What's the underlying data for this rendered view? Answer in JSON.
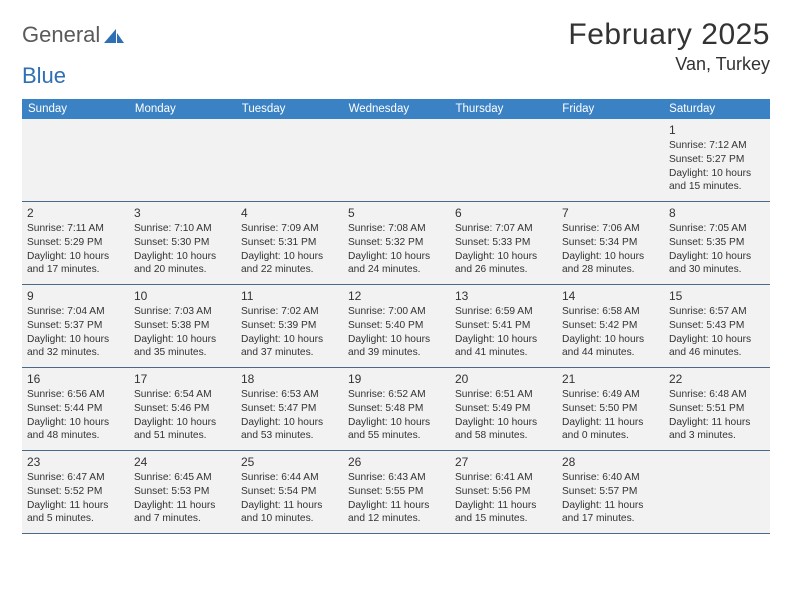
{
  "logo": {
    "word1": "General",
    "word2": "Blue"
  },
  "title": "February 2025",
  "location": "Van, Turkey",
  "colors": {
    "header_bar": "#3b82c4",
    "header_text": "#ffffff",
    "cell_bg": "#f2f2f2",
    "row_divider": "#4a6a8a",
    "logo_gray": "#5a5a5a",
    "logo_blue": "#2f6fb3",
    "sail_blue": "#2f6fb3"
  },
  "dayNames": [
    "Sunday",
    "Monday",
    "Tuesday",
    "Wednesday",
    "Thursday",
    "Friday",
    "Saturday"
  ],
  "weeks": [
    [
      null,
      null,
      null,
      null,
      null,
      null,
      {
        "n": "1",
        "sunrise": "Sunrise: 7:12 AM",
        "sunset": "Sunset: 5:27 PM",
        "daylight": "Daylight: 10 hours and 15 minutes."
      }
    ],
    [
      {
        "n": "2",
        "sunrise": "Sunrise: 7:11 AM",
        "sunset": "Sunset: 5:29 PM",
        "daylight": "Daylight: 10 hours and 17 minutes."
      },
      {
        "n": "3",
        "sunrise": "Sunrise: 7:10 AM",
        "sunset": "Sunset: 5:30 PM",
        "daylight": "Daylight: 10 hours and 20 minutes."
      },
      {
        "n": "4",
        "sunrise": "Sunrise: 7:09 AM",
        "sunset": "Sunset: 5:31 PM",
        "daylight": "Daylight: 10 hours and 22 minutes."
      },
      {
        "n": "5",
        "sunrise": "Sunrise: 7:08 AM",
        "sunset": "Sunset: 5:32 PM",
        "daylight": "Daylight: 10 hours and 24 minutes."
      },
      {
        "n": "6",
        "sunrise": "Sunrise: 7:07 AM",
        "sunset": "Sunset: 5:33 PM",
        "daylight": "Daylight: 10 hours and 26 minutes."
      },
      {
        "n": "7",
        "sunrise": "Sunrise: 7:06 AM",
        "sunset": "Sunset: 5:34 PM",
        "daylight": "Daylight: 10 hours and 28 minutes."
      },
      {
        "n": "8",
        "sunrise": "Sunrise: 7:05 AM",
        "sunset": "Sunset: 5:35 PM",
        "daylight": "Daylight: 10 hours and 30 minutes."
      }
    ],
    [
      {
        "n": "9",
        "sunrise": "Sunrise: 7:04 AM",
        "sunset": "Sunset: 5:37 PM",
        "daylight": "Daylight: 10 hours and 32 minutes."
      },
      {
        "n": "10",
        "sunrise": "Sunrise: 7:03 AM",
        "sunset": "Sunset: 5:38 PM",
        "daylight": "Daylight: 10 hours and 35 minutes."
      },
      {
        "n": "11",
        "sunrise": "Sunrise: 7:02 AM",
        "sunset": "Sunset: 5:39 PM",
        "daylight": "Daylight: 10 hours and 37 minutes."
      },
      {
        "n": "12",
        "sunrise": "Sunrise: 7:00 AM",
        "sunset": "Sunset: 5:40 PM",
        "daylight": "Daylight: 10 hours and 39 minutes."
      },
      {
        "n": "13",
        "sunrise": "Sunrise: 6:59 AM",
        "sunset": "Sunset: 5:41 PM",
        "daylight": "Daylight: 10 hours and 41 minutes."
      },
      {
        "n": "14",
        "sunrise": "Sunrise: 6:58 AM",
        "sunset": "Sunset: 5:42 PM",
        "daylight": "Daylight: 10 hours and 44 minutes."
      },
      {
        "n": "15",
        "sunrise": "Sunrise: 6:57 AM",
        "sunset": "Sunset: 5:43 PM",
        "daylight": "Daylight: 10 hours and 46 minutes."
      }
    ],
    [
      {
        "n": "16",
        "sunrise": "Sunrise: 6:56 AM",
        "sunset": "Sunset: 5:44 PM",
        "daylight": "Daylight: 10 hours and 48 minutes."
      },
      {
        "n": "17",
        "sunrise": "Sunrise: 6:54 AM",
        "sunset": "Sunset: 5:46 PM",
        "daylight": "Daylight: 10 hours and 51 minutes."
      },
      {
        "n": "18",
        "sunrise": "Sunrise: 6:53 AM",
        "sunset": "Sunset: 5:47 PM",
        "daylight": "Daylight: 10 hours and 53 minutes."
      },
      {
        "n": "19",
        "sunrise": "Sunrise: 6:52 AM",
        "sunset": "Sunset: 5:48 PM",
        "daylight": "Daylight: 10 hours and 55 minutes."
      },
      {
        "n": "20",
        "sunrise": "Sunrise: 6:51 AM",
        "sunset": "Sunset: 5:49 PM",
        "daylight": "Daylight: 10 hours and 58 minutes."
      },
      {
        "n": "21",
        "sunrise": "Sunrise: 6:49 AM",
        "sunset": "Sunset: 5:50 PM",
        "daylight": "Daylight: 11 hours and 0 minutes."
      },
      {
        "n": "22",
        "sunrise": "Sunrise: 6:48 AM",
        "sunset": "Sunset: 5:51 PM",
        "daylight": "Daylight: 11 hours and 3 minutes."
      }
    ],
    [
      {
        "n": "23",
        "sunrise": "Sunrise: 6:47 AM",
        "sunset": "Sunset: 5:52 PM",
        "daylight": "Daylight: 11 hours and 5 minutes."
      },
      {
        "n": "24",
        "sunrise": "Sunrise: 6:45 AM",
        "sunset": "Sunset: 5:53 PM",
        "daylight": "Daylight: 11 hours and 7 minutes."
      },
      {
        "n": "25",
        "sunrise": "Sunrise: 6:44 AM",
        "sunset": "Sunset: 5:54 PM",
        "daylight": "Daylight: 11 hours and 10 minutes."
      },
      {
        "n": "26",
        "sunrise": "Sunrise: 6:43 AM",
        "sunset": "Sunset: 5:55 PM",
        "daylight": "Daylight: 11 hours and 12 minutes."
      },
      {
        "n": "27",
        "sunrise": "Sunrise: 6:41 AM",
        "sunset": "Sunset: 5:56 PM",
        "daylight": "Daylight: 11 hours and 15 minutes."
      },
      {
        "n": "28",
        "sunrise": "Sunrise: 6:40 AM",
        "sunset": "Sunset: 5:57 PM",
        "daylight": "Daylight: 11 hours and 17 minutes."
      },
      null
    ]
  ]
}
